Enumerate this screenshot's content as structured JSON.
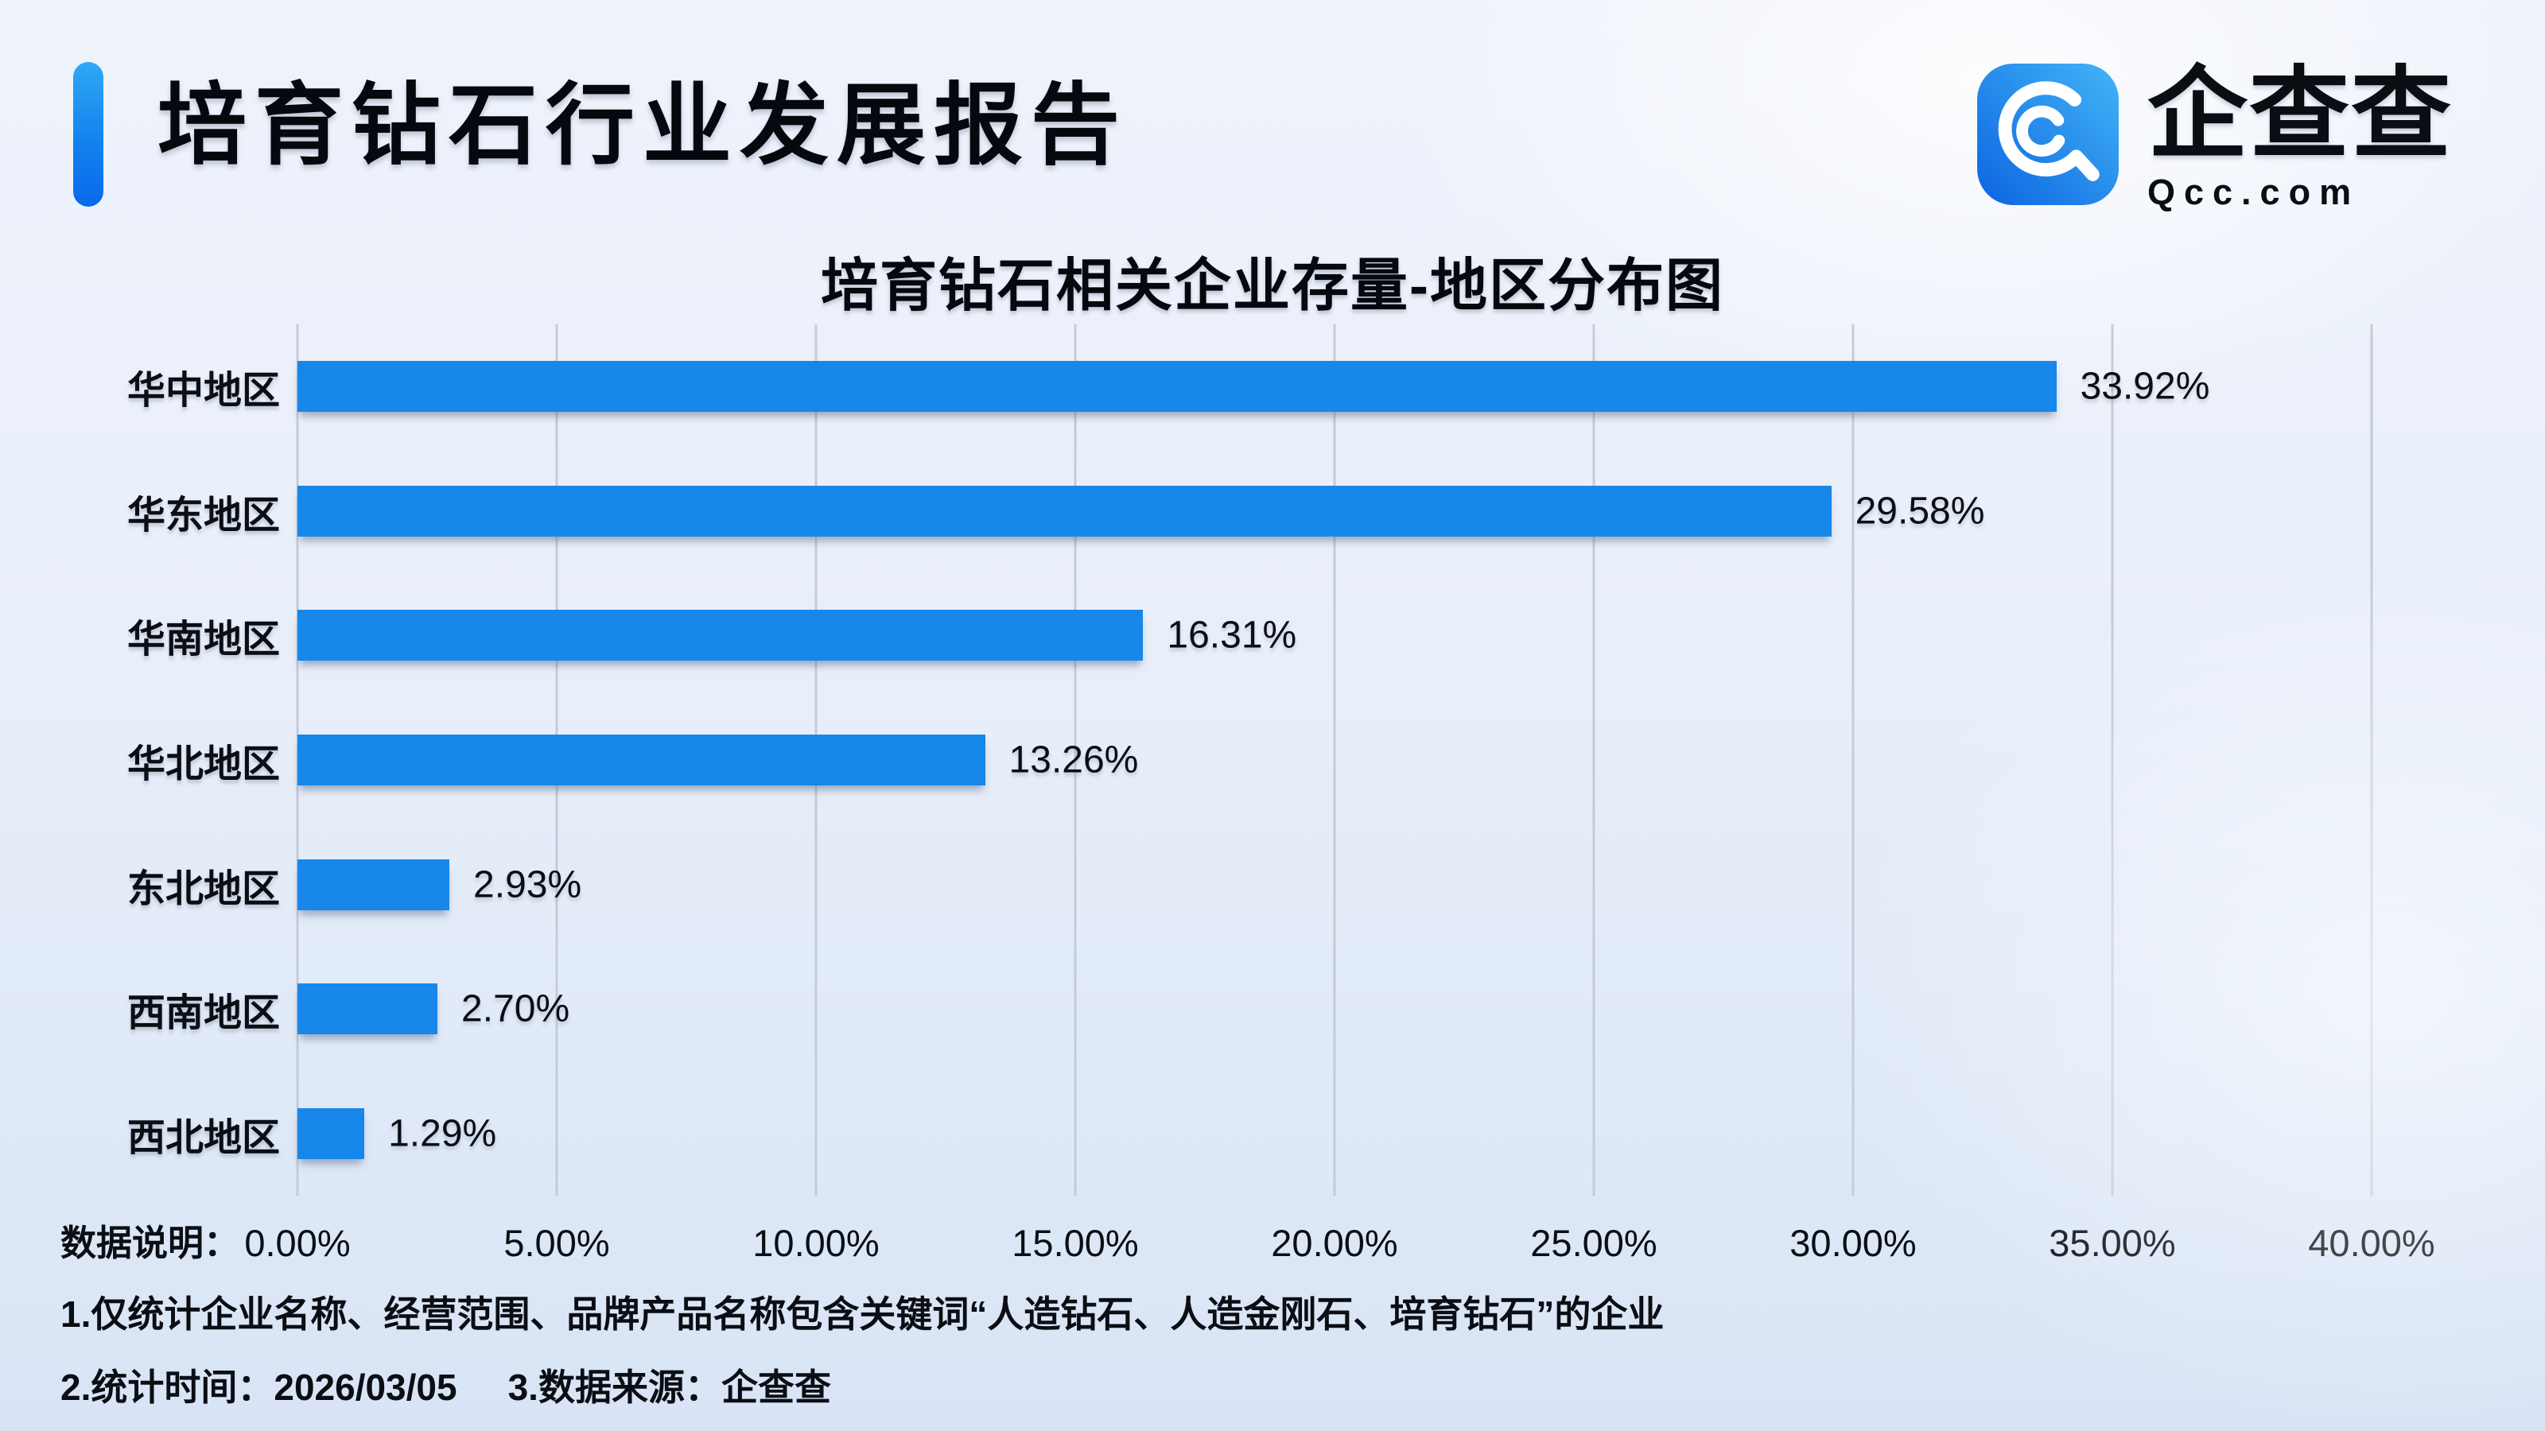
{
  "header": {
    "title": "培育钻石行业发展报告"
  },
  "logo": {
    "name": "企查查",
    "domain": "Qcc.com",
    "icon": "qcc-magnifier-icon",
    "icon_color_start": "#43b5f7",
    "icon_color_end": "#0c64e0"
  },
  "chart_data": {
    "type": "bar",
    "orientation": "horizontal",
    "title": "培育钻石相关企业存量-地区分布图",
    "categories": [
      "华中地区",
      "华东地区",
      "华南地区",
      "华北地区",
      "东北地区",
      "西南地区",
      "西北地区"
    ],
    "values": [
      33.92,
      29.58,
      16.31,
      13.26,
      2.93,
      2.7,
      1.29
    ],
    "value_labels": [
      "33.92%",
      "29.58%",
      "16.31%",
      "13.26%",
      "2.93%",
      "2.70%",
      "1.29%"
    ],
    "x_ticks": [
      "0.00%",
      "5.00%",
      "10.00%",
      "15.00%",
      "20.00%",
      "25.00%",
      "30.00%",
      "35.00%",
      "40.00%"
    ],
    "xlim": [
      0,
      40
    ],
    "grid": true,
    "legend": false,
    "bar_color": "#1787e9"
  },
  "footer": {
    "data_note_label": "数据说明：",
    "note1": "1.仅统计企业名称、经营范围、品牌产品名称包含关键词“人造钻石、人造金刚石、培育钻石”的企业",
    "note2": "2.统计时间：2026/03/05",
    "note3": "3.数据来源：企查查"
  }
}
